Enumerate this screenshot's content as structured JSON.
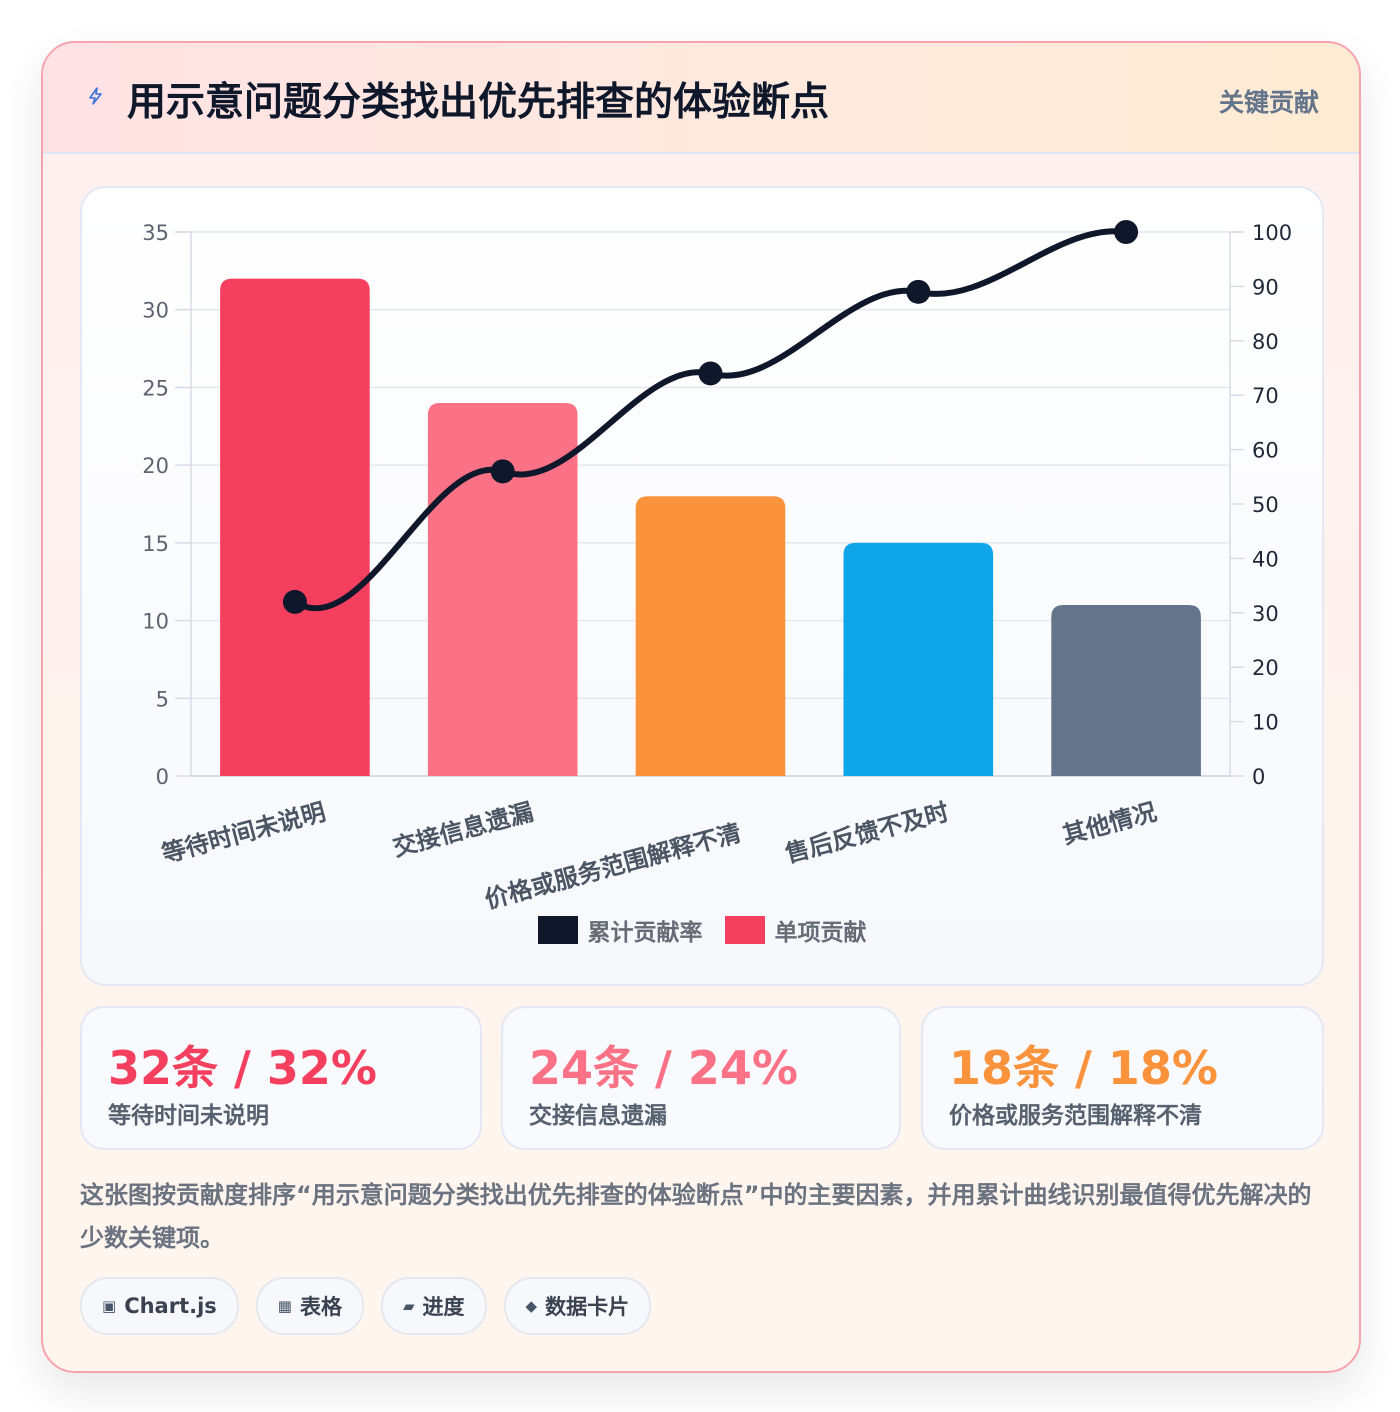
{
  "header": {
    "title": "用示意问题分类找出优先排查的体验断点",
    "tag": "关键贡献",
    "icon": "lightning-icon"
  },
  "chart_data": {
    "type": "bar",
    "categories": [
      "等待时间未说明",
      "交接信息遗漏",
      "价格或服务范围解释不清",
      "售后反馈不及时",
      "其他情况"
    ],
    "series": [
      {
        "name": "单项贡献",
        "type": "bar",
        "axis": "left",
        "values": [
          32,
          24,
          18,
          15,
          11
        ],
        "colors": [
          "#f43f5e",
          "#fb7185",
          "#fb923c",
          "#0ea5e9",
          "#64748b"
        ]
      },
      {
        "name": "累计贡献率",
        "type": "line",
        "axis": "right",
        "values": [
          32,
          56,
          74,
          89,
          100
        ],
        "color": "#0f172a"
      }
    ],
    "y_left": {
      "min": 0,
      "max": 35,
      "ticks": [
        0,
        5,
        10,
        15,
        20,
        25,
        30,
        35
      ]
    },
    "y_right": {
      "min": 0,
      "max": 100,
      "ticks": [
        0,
        10,
        20,
        30,
        40,
        50,
        60,
        70,
        80,
        90,
        100
      ]
    },
    "grid": true,
    "legend_position": "bottom",
    "legend": [
      {
        "label": "累计贡献率",
        "color": "#0f172a"
      },
      {
        "label": "单项贡献",
        "color": "#f43f5e"
      }
    ]
  },
  "stats": [
    {
      "value": "32条 / 32%",
      "label": "等待时间未说明",
      "color": "#f43f5e"
    },
    {
      "value": "24条 / 24%",
      "label": "交接信息遗漏",
      "color": "#fb7185"
    },
    {
      "value": "18条 / 18%",
      "label": "价格或服务范围解释不清",
      "color": "#fb923c"
    }
  ],
  "description": "这张图按贡献度排序“用示意问题分类找出优先排查的体验断点”中的主要因素，并用累计曲线识别最值得优先解决的少数关键项。",
  "chips": [
    {
      "icon": "▣",
      "label": "Chart.js"
    },
    {
      "icon": "▦",
      "label": "表格"
    },
    {
      "icon": "▰",
      "label": "进度"
    },
    {
      "icon": "◆",
      "label": "数据卡片"
    }
  ]
}
